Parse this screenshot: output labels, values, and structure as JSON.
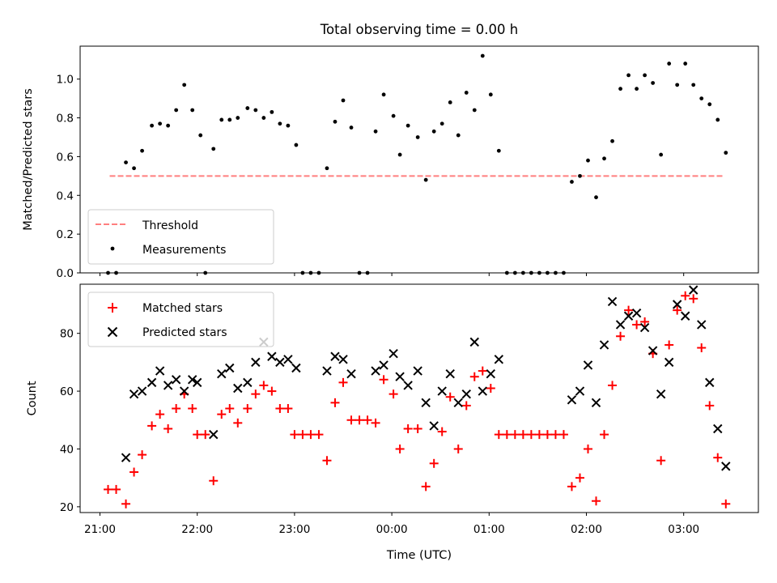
{
  "chart_data": [
    {
      "type": "scatter",
      "title": "Total observing time = 0.00 h",
      "ylabel": "Matched/Predicted stars",
      "ylim": [
        0,
        1.17
      ],
      "yticks": [
        "0.0",
        "0.2",
        "0.4",
        "0.6",
        "0.8",
        "1.0"
      ],
      "legend": {
        "position": "lower-left",
        "entries": [
          "Threshold",
          "Measurements"
        ]
      },
      "threshold": {
        "name": "Threshold",
        "value": 0.5,
        "x_start": "21:06",
        "x_end": "03:24",
        "color": "#ff7f7f",
        "style": "dashed"
      },
      "series": [
        {
          "name": "Measurements",
          "color": "#000000",
          "marker": "dot",
          "points": [
            [
              "21:05",
              0.0
            ],
            [
              "21:10",
              0.0
            ],
            [
              "21:16",
              0.57
            ],
            [
              "21:21",
              0.54
            ],
            [
              "21:26",
              0.63
            ],
            [
              "21:32",
              0.76
            ],
            [
              "21:37",
              0.77
            ],
            [
              "21:42",
              0.76
            ],
            [
              "21:47",
              0.84
            ],
            [
              "21:52",
              0.97
            ],
            [
              "21:57",
              0.84
            ],
            [
              "22:02",
              0.71
            ],
            [
              "22:05",
              0.0
            ],
            [
              "22:10",
              0.64
            ],
            [
              "22:15",
              0.79
            ],
            [
              "22:20",
              0.79
            ],
            [
              "22:25",
              0.8
            ],
            [
              "22:31",
              0.85
            ],
            [
              "22:36",
              0.84
            ],
            [
              "22:41",
              0.8
            ],
            [
              "22:46",
              0.83
            ],
            [
              "22:51",
              0.77
            ],
            [
              "22:56",
              0.76
            ],
            [
              "23:01",
              0.66
            ],
            [
              "23:05",
              0.0
            ],
            [
              "23:10",
              0.0
            ],
            [
              "23:15",
              0.0
            ],
            [
              "23:20",
              0.54
            ],
            [
              "23:25",
              0.78
            ],
            [
              "23:30",
              0.89
            ],
            [
              "23:35",
              0.75
            ],
            [
              "23:40",
              0.0
            ],
            [
              "23:45",
              0.0
            ],
            [
              "23:50",
              0.73
            ],
            [
              "23:55",
              0.92
            ],
            [
              "00:01",
              0.81
            ],
            [
              "00:05",
              0.61
            ],
            [
              "00:10",
              0.76
            ],
            [
              "00:16",
              0.7
            ],
            [
              "00:21",
              0.48
            ],
            [
              "00:26",
              0.73
            ],
            [
              "00:31",
              0.77
            ],
            [
              "00:36",
              0.88
            ],
            [
              "00:41",
              0.71
            ],
            [
              "00:46",
              0.93
            ],
            [
              "00:51",
              0.84
            ],
            [
              "00:56",
              1.12
            ],
            [
              "01:01",
              0.92
            ],
            [
              "01:06",
              0.63
            ],
            [
              "01:11",
              0.0
            ],
            [
              "01:16",
              0.0
            ],
            [
              "01:21",
              0.0
            ],
            [
              "01:26",
              0.0
            ],
            [
              "01:31",
              0.0
            ],
            [
              "01:36",
              0.0
            ],
            [
              "01:41",
              0.0
            ],
            [
              "01:46",
              0.0
            ],
            [
              "01:51",
              0.47
            ],
            [
              "01:56",
              0.5
            ],
            [
              "02:01",
              0.58
            ],
            [
              "02:06",
              0.39
            ],
            [
              "02:11",
              0.59
            ],
            [
              "02:16",
              0.68
            ],
            [
              "02:21",
              0.95
            ],
            [
              "02:26",
              1.02
            ],
            [
              "02:31",
              0.95
            ],
            [
              "02:36",
              1.02
            ],
            [
              "02:41",
              0.98
            ],
            [
              "02:46",
              0.61
            ],
            [
              "02:51",
              1.08
            ],
            [
              "02:56",
              0.97
            ],
            [
              "03:01",
              1.08
            ],
            [
              "03:06",
              0.97
            ],
            [
              "03:11",
              0.9
            ],
            [
              "03:16",
              0.87
            ],
            [
              "03:21",
              0.79
            ],
            [
              "03:26",
              0.62
            ]
          ]
        }
      ]
    },
    {
      "type": "scatter",
      "xlabel": "Time (UTC)",
      "ylabel": "Count",
      "ylim": [
        18,
        97
      ],
      "yticks": [
        "20",
        "40",
        "60",
        "80"
      ],
      "xticks": [
        "21:00",
        "22:00",
        "23:00",
        "00:00",
        "01:00",
        "02:00",
        "03:00"
      ],
      "legend": {
        "position": "upper-left",
        "entries": [
          "Matched stars",
          "Predicted stars"
        ]
      },
      "series": [
        {
          "name": "Matched stars",
          "color": "#ff0000",
          "marker": "plus",
          "points": [
            [
              "21:05",
              26
            ],
            [
              "21:10",
              26
            ],
            [
              "21:16",
              21
            ],
            [
              "21:21",
              32
            ],
            [
              "21:26",
              38
            ],
            [
              "21:32",
              48
            ],
            [
              "21:37",
              52
            ],
            [
              "21:42",
              47
            ],
            [
              "21:47",
              54
            ],
            [
              "21:52",
              59
            ],
            [
              "21:57",
              54
            ],
            [
              "22:00",
              45
            ],
            [
              "22:05",
              45
            ],
            [
              "22:10",
              29
            ],
            [
              "22:15",
              52
            ],
            [
              "22:20",
              54
            ],
            [
              "22:25",
              49
            ],
            [
              "22:31",
              54
            ],
            [
              "22:36",
              59
            ],
            [
              "22:41",
              62
            ],
            [
              "22:46",
              60
            ],
            [
              "22:51",
              54
            ],
            [
              "22:56",
              54
            ],
            [
              "23:00",
              45
            ],
            [
              "23:05",
              45
            ],
            [
              "23:10",
              45
            ],
            [
              "23:15",
              45
            ],
            [
              "23:20",
              36
            ],
            [
              "23:25",
              56
            ],
            [
              "23:30",
              63
            ],
            [
              "23:35",
              50
            ],
            [
              "23:40",
              50
            ],
            [
              "23:45",
              50
            ],
            [
              "23:50",
              49
            ],
            [
              "23:55",
              64
            ],
            [
              "00:01",
              59
            ],
            [
              "00:05",
              40
            ],
            [
              "00:10",
              47
            ],
            [
              "00:16",
              47
            ],
            [
              "00:21",
              27
            ],
            [
              "00:26",
              35
            ],
            [
              "00:31",
              46
            ],
            [
              "00:36",
              58
            ],
            [
              "00:41",
              40
            ],
            [
              "00:46",
              55
            ],
            [
              "00:51",
              65
            ],
            [
              "00:56",
              67
            ],
            [
              "01:01",
              61
            ],
            [
              "01:06",
              45
            ],
            [
              "01:11",
              45
            ],
            [
              "01:16",
              45
            ],
            [
              "01:21",
              45
            ],
            [
              "01:26",
              45
            ],
            [
              "01:31",
              45
            ],
            [
              "01:36",
              45
            ],
            [
              "01:41",
              45
            ],
            [
              "01:46",
              45
            ],
            [
              "01:51",
              27
            ],
            [
              "01:56",
              30
            ],
            [
              "02:01",
              40
            ],
            [
              "02:06",
              22
            ],
            [
              "02:11",
              45
            ],
            [
              "02:16",
              62
            ],
            [
              "02:21",
              79
            ],
            [
              "02:26",
              88
            ],
            [
              "02:31",
              83
            ],
            [
              "02:36",
              84
            ],
            [
              "02:41",
              73
            ],
            [
              "02:46",
              36
            ],
            [
              "02:51",
              76
            ],
            [
              "02:56",
              88
            ],
            [
              "03:01",
              93
            ],
            [
              "03:06",
              92
            ],
            [
              "03:11",
              75
            ],
            [
              "03:16",
              55
            ],
            [
              "03:21",
              37
            ],
            [
              "03:26",
              21
            ]
          ]
        },
        {
          "name": "Predicted stars",
          "color": "#000000",
          "marker": "x",
          "points": [
            [
              "21:16",
              37
            ],
            [
              "21:21",
              59
            ],
            [
              "21:26",
              60
            ],
            [
              "21:32",
              63
            ],
            [
              "21:37",
              67
            ],
            [
              "21:42",
              62
            ],
            [
              "21:47",
              64
            ],
            [
              "21:52",
              60
            ],
            [
              "21:57",
              64
            ],
            [
              "22:00",
              63
            ],
            [
              "22:10",
              45
            ],
            [
              "22:15",
              66
            ],
            [
              "22:20",
              68
            ],
            [
              "22:25",
              61
            ],
            [
              "22:31",
              63
            ],
            [
              "22:36",
              70
            ],
            [
              "22:41",
              77
            ],
            [
              "22:46",
              72
            ],
            [
              "22:51",
              70
            ],
            [
              "22:56",
              71
            ],
            [
              "23:01",
              68
            ],
            [
              "23:20",
              67
            ],
            [
              "23:25",
              72
            ],
            [
              "23:30",
              71
            ],
            [
              "23:35",
              66
            ],
            [
              "23:50",
              67
            ],
            [
              "23:55",
              69
            ],
            [
              "00:01",
              73
            ],
            [
              "00:05",
              65
            ],
            [
              "00:10",
              62
            ],
            [
              "00:16",
              67
            ],
            [
              "00:21",
              56
            ],
            [
              "00:26",
              48
            ],
            [
              "00:31",
              60
            ],
            [
              "00:36",
              66
            ],
            [
              "00:41",
              56
            ],
            [
              "00:46",
              59
            ],
            [
              "00:51",
              77
            ],
            [
              "00:56",
              60
            ],
            [
              "01:01",
              66
            ],
            [
              "01:06",
              71
            ],
            [
              "01:51",
              57
            ],
            [
              "01:56",
              60
            ],
            [
              "02:01",
              69
            ],
            [
              "02:06",
              56
            ],
            [
              "02:11",
              76
            ],
            [
              "02:16",
              91
            ],
            [
              "02:21",
              83
            ],
            [
              "02:26",
              86
            ],
            [
              "02:31",
              87
            ],
            [
              "02:36",
              82
            ],
            [
              "02:41",
              74
            ],
            [
              "02:46",
              59
            ],
            [
              "02:51",
              70
            ],
            [
              "02:56",
              90
            ],
            [
              "03:01",
              86
            ],
            [
              "03:06",
              95
            ],
            [
              "03:11",
              83
            ],
            [
              "03:16",
              63
            ],
            [
              "03:21",
              47
            ],
            [
              "03:26",
              34
            ]
          ]
        }
      ]
    }
  ]
}
